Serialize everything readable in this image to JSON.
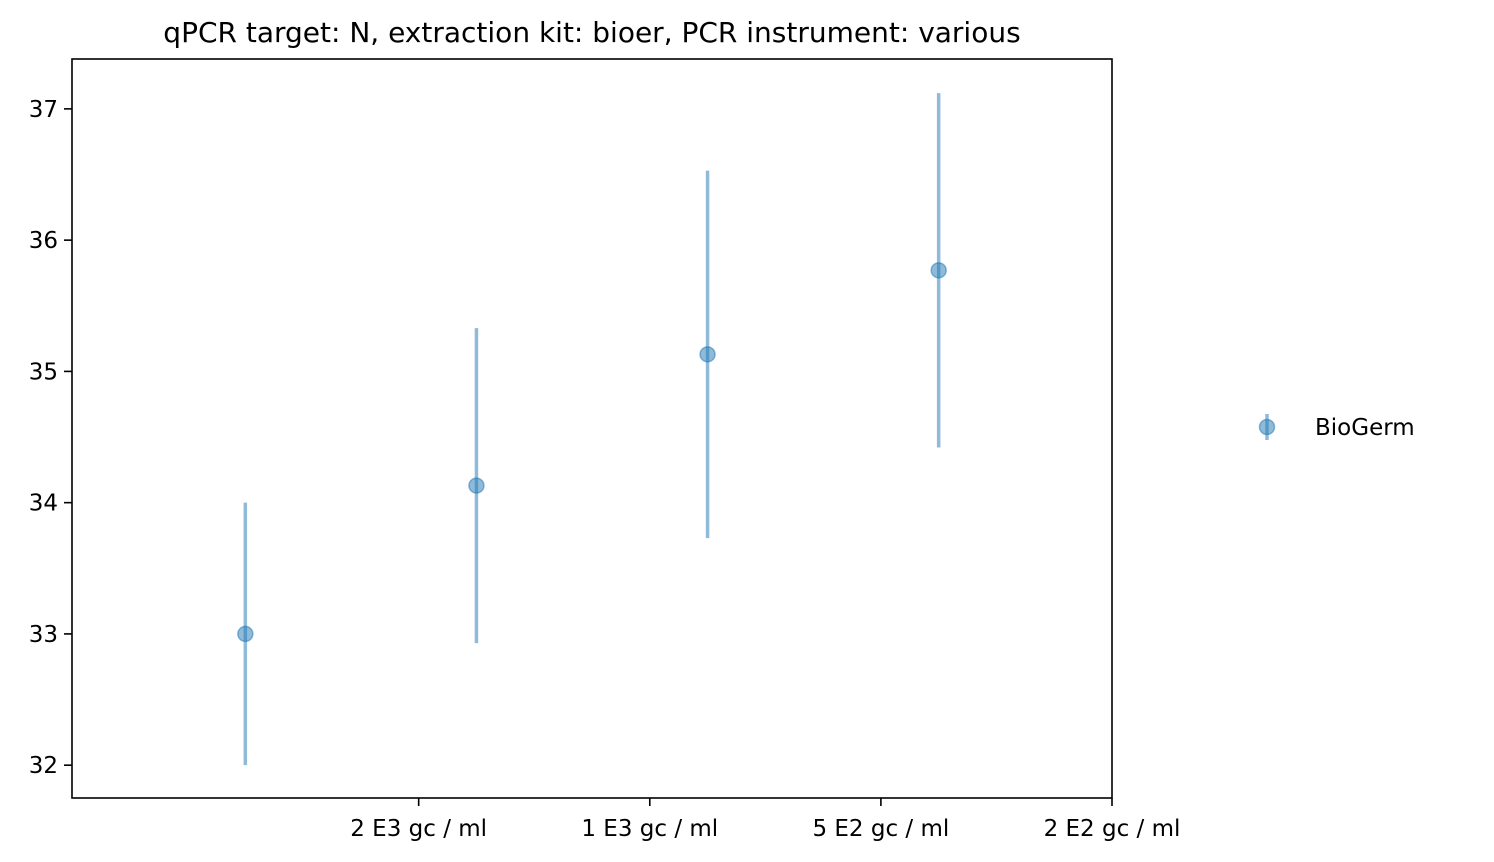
{
  "chart_data": {
    "type": "scatter",
    "title": "qPCR target: N, extraction kit: bioer, PCR instrument: various",
    "xlabel": "",
    "ylabel": "",
    "x_tick_labels": [
      "2 E3 gc / ml",
      "1 E3 gc / ml",
      "5 E2 gc / ml",
      "2 E2 gc / ml"
    ],
    "y_ticks": [
      32,
      33,
      34,
      35,
      36,
      37
    ],
    "ylim": [
      31.75,
      37.38
    ],
    "grid": false,
    "legend_position": "right",
    "series": [
      {
        "name": "BioGerm",
        "color": "#1f77b4",
        "marker": "circle",
        "error_bars": "vertical",
        "points": [
          {
            "y": 33.0,
            "y_low": 32.0,
            "y_high": 34.0
          },
          {
            "y": 34.13,
            "y_low": 32.93,
            "y_high": 35.33
          },
          {
            "y": 35.13,
            "y_low": 33.73,
            "y_high": 36.53
          },
          {
            "y": 35.77,
            "y_low": 34.42,
            "y_high": 37.12
          }
        ]
      }
    ]
  }
}
